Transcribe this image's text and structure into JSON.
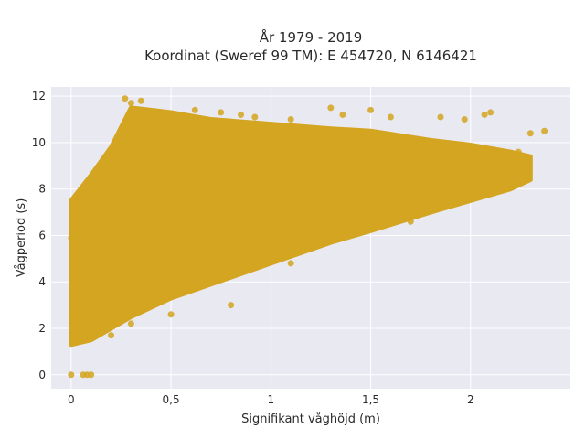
{
  "chart_data": {
    "type": "scatter",
    "title_lines": [
      "År 1979 - 2019",
      "Koordinat (Sweref 99 TM): E 454720, N 6146421"
    ],
    "xlabel": "Signifikant våghöjd (m)",
    "ylabel": "Vågperiod (s)",
    "xlim": [
      -0.1,
      2.5
    ],
    "ylim": [
      -0.6,
      12.4
    ],
    "x_ticks": [
      0,
      0.5,
      1,
      1.5,
      2
    ],
    "x_tick_labels": [
      "0",
      "0,5",
      "1",
      "1,5",
      "2"
    ],
    "y_ticks": [
      0,
      2,
      4,
      6,
      8,
      10,
      12
    ],
    "y_tick_labels": [
      "0",
      "2",
      "4",
      "6",
      "8",
      "10",
      "12"
    ],
    "grid": true,
    "legend": "none",
    "marker_color": "#d4a520",
    "plot_background": "#e9e9f2",
    "cloud_envelope": {
      "x": [
        0.0,
        0.1,
        0.2,
        0.3,
        0.5,
        0.7,
        1.0,
        1.3,
        1.5,
        1.8,
        2.0,
        2.2,
        2.3
      ],
      "y_min": [
        1.3,
        1.5,
        2.0,
        2.5,
        3.3,
        3.9,
        4.8,
        5.7,
        6.2,
        7.0,
        7.5,
        8.0,
        8.4
      ],
      "y_max": [
        7.5,
        8.6,
        9.8,
        11.5,
        11.3,
        11.0,
        10.8,
        10.6,
        10.5,
        10.1,
        9.9,
        9.6,
        9.4
      ]
    },
    "points": [
      [
        0.0,
        0.0
      ],
      [
        0.06,
        0.0
      ],
      [
        0.08,
        0.0
      ],
      [
        0.1,
        0.0
      ],
      [
        0.0,
        5.9
      ],
      [
        0.01,
        2.5
      ],
      [
        0.02,
        1.5
      ],
      [
        0.27,
        11.9
      ],
      [
        0.3,
        11.7
      ],
      [
        0.35,
        11.8
      ],
      [
        0.44,
        11.3
      ],
      [
        0.62,
        11.4
      ],
      [
        0.75,
        11.3
      ],
      [
        0.85,
        11.2
      ],
      [
        0.92,
        11.1
      ],
      [
        1.1,
        11.0
      ],
      [
        1.3,
        11.5
      ],
      [
        1.36,
        11.2
      ],
      [
        1.5,
        11.4
      ],
      [
        1.6,
        11.1
      ],
      [
        1.85,
        11.1
      ],
      [
        1.97,
        11.0
      ],
      [
        2.07,
        11.2
      ],
      [
        2.1,
        11.3
      ],
      [
        2.3,
        10.4
      ],
      [
        2.37,
        10.5
      ],
      [
        2.24,
        9.6
      ],
      [
        2.2,
        9.4
      ],
      [
        0.8,
        3.0
      ],
      [
        0.5,
        2.6
      ],
      [
        0.2,
        1.7
      ],
      [
        0.3,
        2.2
      ],
      [
        1.1,
        4.8
      ],
      [
        1.7,
        6.6
      ]
    ]
  }
}
